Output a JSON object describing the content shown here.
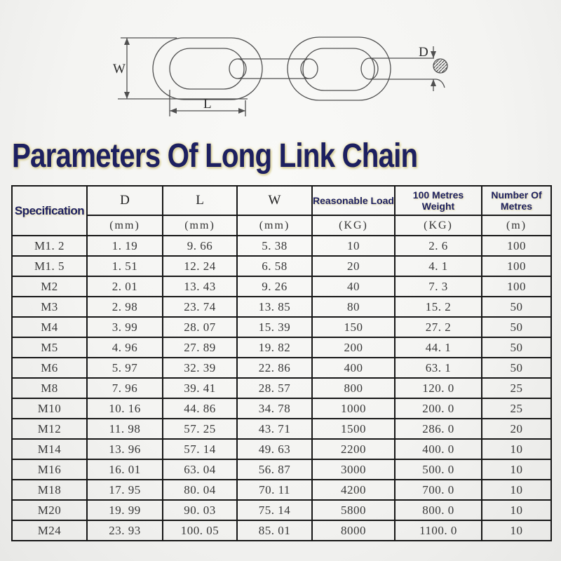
{
  "title": "Parameters Of Long Link Chain",
  "diagram": {
    "width_label": "W",
    "length_label": "L",
    "diameter_label": "D"
  },
  "table": {
    "spec_header": "Specification",
    "columns": [
      {
        "label": "D",
        "unit": "(mm)"
      },
      {
        "label": "L",
        "unit": "(mm)"
      },
      {
        "label": "W",
        "unit": "(mm)"
      },
      {
        "label": "Reasonable Load",
        "unit": "(KG)"
      },
      {
        "label": "100 Metres Weight",
        "unit": "(KG)"
      },
      {
        "label": "Number Of Metres",
        "unit": "(m)"
      }
    ],
    "rows": [
      [
        "M1. 2",
        "1. 19",
        "9. 66",
        "5. 38",
        "10",
        "2. 6",
        "100"
      ],
      [
        "M1. 5",
        "1. 51",
        "12. 24",
        "6. 58",
        "20",
        "4. 1",
        "100"
      ],
      [
        "M2",
        "2. 01",
        "13. 43",
        "9. 26",
        "40",
        "7. 3",
        "100"
      ],
      [
        "M3",
        "2. 98",
        "23. 74",
        "13. 85",
        "80",
        "15. 2",
        "50"
      ],
      [
        "M4",
        "3. 99",
        "28. 07",
        "15. 39",
        "150",
        "27. 2",
        "50"
      ],
      [
        "M5",
        "4. 96",
        "27. 89",
        "19. 82",
        "200",
        "44. 1",
        "50"
      ],
      [
        "M6",
        "5. 97",
        "32. 39",
        "22. 86",
        "400",
        "63. 1",
        "50"
      ],
      [
        "M8",
        "7. 96",
        "39. 41",
        "28. 57",
        "800",
        "120. 0",
        "25"
      ],
      [
        "M10",
        "10. 16",
        "44. 86",
        "34. 78",
        "1000",
        "200. 0",
        "25"
      ],
      [
        "M12",
        "11. 98",
        "57. 25",
        "43. 71",
        "1500",
        "286. 0",
        "20"
      ],
      [
        "M14",
        "13. 96",
        "57. 14",
        "49. 63",
        "2200",
        "400. 0",
        "10"
      ],
      [
        "M16",
        "16. 01",
        "63. 04",
        "56. 87",
        "3000",
        "500. 0",
        "10"
      ],
      [
        "M18",
        "17. 95",
        "80. 04",
        "70. 11",
        "4200",
        "700. 0",
        "10"
      ],
      [
        "M20",
        "19. 99",
        "90. 03",
        "75. 14",
        "5800",
        "800. 0",
        "10"
      ],
      [
        "M24",
        "23. 93",
        "100. 05",
        "85. 01",
        "8000",
        "1100. 0",
        "10"
      ]
    ]
  },
  "colors": {
    "heading_navy": "#1d2060",
    "title_glow": "#d9d19e",
    "table_border": "#161616",
    "data_text": "#383838",
    "drawing_stroke": "#4f4f4f",
    "background": "#f4f4f2"
  }
}
